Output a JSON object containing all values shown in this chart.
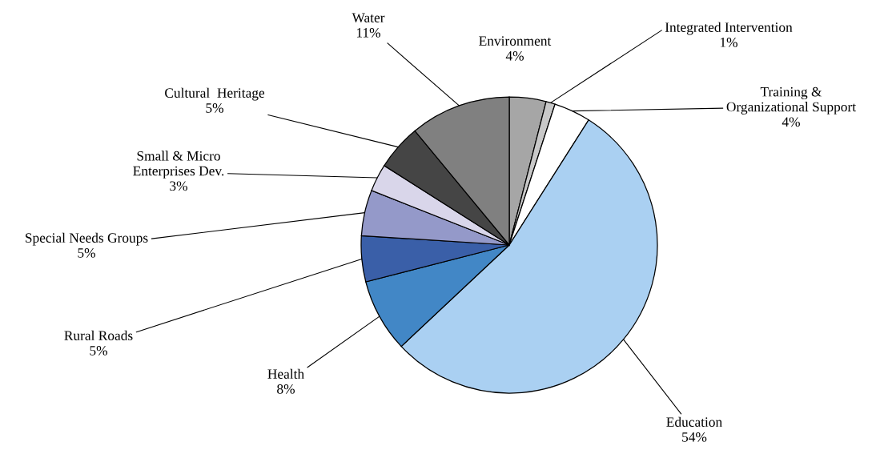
{
  "chart_data": {
    "type": "pie",
    "categories": [
      "Environment",
      "Integrated Intervention",
      "Training &\nOrganizational Support",
      "Education",
      "Health",
      "Rural Roads",
      "Special Needs Groups",
      "Small & Micro\nEnterprises Dev.",
      "Cultural  Heritage",
      "Water"
    ],
    "values": [
      4,
      1,
      4,
      54,
      8,
      5,
      5,
      3,
      5,
      11
    ],
    "value_labels": [
      "4%",
      "1%",
      "4%",
      "54%",
      "8%",
      "5%",
      "5%",
      "3%",
      "5%",
      "11%"
    ],
    "colors": [
      "#a6a6a6",
      "#c8c8c8",
      "#ffffff",
      "#aad0f2",
      "#4287c6",
      "#3a5fa8",
      "#9499c9",
      "#d9d6ea",
      "#454545",
      "#808080"
    ]
  }
}
